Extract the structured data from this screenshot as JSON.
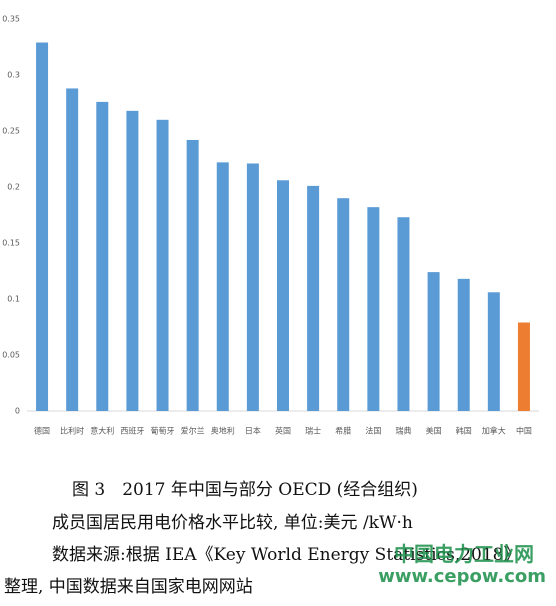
{
  "chart_data": {
    "type": "bar",
    "categories": [
      "德国",
      "比利时",
      "意大利",
      "西班牙",
      "葡萄牙",
      "爱尔兰",
      "奥地利",
      "日本",
      "英国",
      "瑞士",
      "希腊",
      "法国",
      "瑞典",
      "美国",
      "韩国",
      "加拿大",
      "中国"
    ],
    "values": [
      0.329,
      0.288,
      0.276,
      0.268,
      0.26,
      0.242,
      0.222,
      0.221,
      0.206,
      0.201,
      0.19,
      0.182,
      0.173,
      0.124,
      0.118,
      0.106,
      0.079
    ],
    "colors": [
      "#5b9bd5",
      "#5b9bd5",
      "#5b9bd5",
      "#5b9bd5",
      "#5b9bd5",
      "#5b9bd5",
      "#5b9bd5",
      "#5b9bd5",
      "#5b9bd5",
      "#5b9bd5",
      "#5b9bd5",
      "#5b9bd5",
      "#5b9bd5",
      "#5b9bd5",
      "#5b9bd5",
      "#5b9bd5",
      "#ed7d31"
    ],
    "ylim": [
      0,
      0.35
    ],
    "yticks": [
      0,
      0.05,
      0.1,
      0.15,
      0.2,
      0.25,
      0.3,
      0.35
    ],
    "grid": false
  },
  "caption": [
    "图 3　2017 年中国与部分 OECD (经合组织)",
    "成员国居民用电价格水平比较, 单位:美元 /kW·h",
    "数据来源:根据 IEA《Key World Energy Statistics,2018》",
    "整理, 中国数据来自国家电网网站"
  ],
  "watermark": [
    "中国电力工业网",
    "www.cepow.com"
  ]
}
